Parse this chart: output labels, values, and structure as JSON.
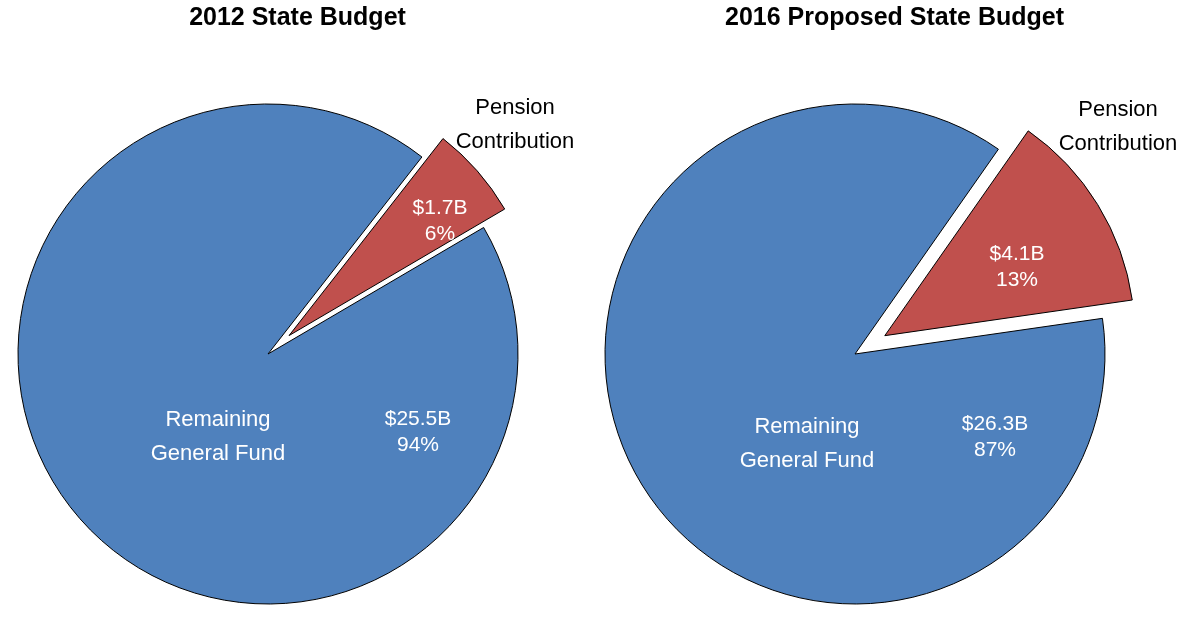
{
  "chart_data": [
    {
      "type": "pie",
      "title": "2012 State Budget",
      "categories": [
        "Pension Contribution",
        "Remaining General Fund"
      ],
      "values": [
        6,
        94
      ],
      "colors": [
        "#c0504d",
        "#4f81bd"
      ],
      "value_labels": [
        "$1.7B\n6%",
        "$25.5B\n94%"
      ]
    },
    {
      "type": "pie",
      "title": "2016 Proposed State Budget",
      "categories": [
        "Pension Contribution",
        "Remaining General Fund"
      ],
      "values": [
        13,
        87
      ],
      "colors": [
        "#c0504d",
        "#4f81bd"
      ],
      "value_labels": [
        "$4.1B\n13%",
        "$26.3B\n87%"
      ]
    }
  ]
}
